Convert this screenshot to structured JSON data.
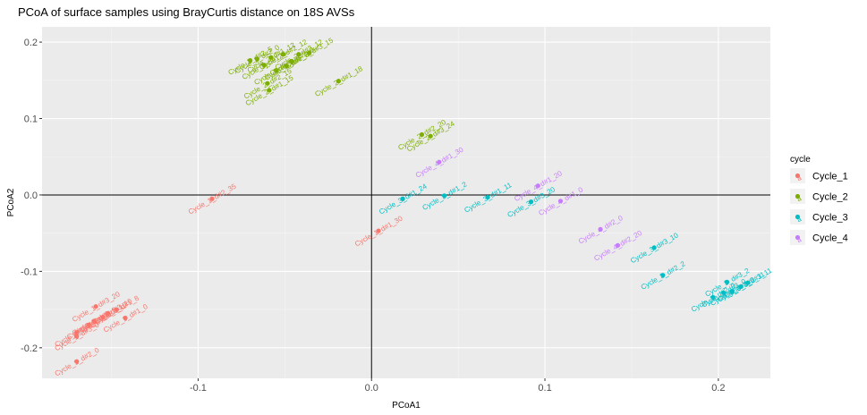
{
  "chart_data": {
    "type": "scatter",
    "title": "PCoA of surface samples using BrayCurtis distance on 18S AVSs",
    "xlabel": "PCoA1",
    "ylabel": "PCoA2",
    "xlim": [
      -0.19,
      0.23
    ],
    "ylim": [
      -0.24,
      0.22
    ],
    "x_ticks": [
      {
        "value": -0.1,
        "label": "-0.1"
      },
      {
        "value": 0.0,
        "label": "0.0"
      },
      {
        "value": 0.1,
        "label": "0.1"
      },
      {
        "value": 0.2,
        "label": "0.2"
      }
    ],
    "y_ticks": [
      {
        "value": 0.2,
        "label": "0.2"
      },
      {
        "value": 0.1,
        "label": "0.1"
      },
      {
        "value": 0.0,
        "label": "0.0"
      },
      {
        "value": -0.1,
        "label": "-0.1"
      },
      {
        "value": -0.2,
        "label": "-0.2"
      }
    ],
    "grid": true,
    "reference_lines": {
      "x": 0,
      "y": 0
    },
    "legend": {
      "title": "cycle",
      "position": "right"
    },
    "series": [
      {
        "name": "Cycle_1",
        "color": "#F8766D",
        "points": [
          {
            "x": -0.092,
            "y": -0.005,
            "label": "Cycle_1_d#2_35"
          },
          {
            "x": 0.004,
            "y": -0.047,
            "label": "Cycle_1_d#1_30"
          },
          {
            "x": -0.159,
            "y": -0.146,
            "label": "Cycle_1_d#3_20"
          },
          {
            "x": -0.147,
            "y": -0.15,
            "label": "Cycle_1_d#1_8"
          },
          {
            "x": -0.142,
            "y": -0.161,
            "label": "Cycle_1_d#1_0"
          },
          {
            "x": -0.152,
            "y": -0.155,
            "label": "Cycle_1_d#3_10"
          },
          {
            "x": -0.155,
            "y": -0.16,
            "label": "Cycle_1_d#2_10"
          },
          {
            "x": -0.16,
            "y": -0.165,
            "label": "Cycle_1_d#3_5"
          },
          {
            "x": -0.163,
            "y": -0.17,
            "label": "Cycle_1_d#1_5"
          },
          {
            "x": -0.17,
            "y": -0.18,
            "label": "Cycle_1_d#2_5"
          },
          {
            "x": -0.17,
            "y": -0.185,
            "label": "Cycle_1_d#3_0"
          },
          {
            "x": -0.17,
            "y": -0.218,
            "label": "Cycle_1_d#2_0"
          }
        ]
      },
      {
        "name": "Cycle_2",
        "color": "#7CAE00",
        "points": [
          {
            "x": -0.07,
            "y": 0.176,
            "label": "Cycle_2_d#2_5"
          },
          {
            "x": -0.066,
            "y": 0.178,
            "label": "Cycle_2_d#2_0"
          },
          {
            "x": -0.062,
            "y": 0.17,
            "label": "Cycle_2_d#1_5"
          },
          {
            "x": -0.058,
            "y": 0.18,
            "label": "Cycle_2_d#1_12"
          },
          {
            "x": -0.055,
            "y": 0.163,
            "label": "Cycle_2_d#3_5"
          },
          {
            "x": -0.051,
            "y": 0.184,
            "label": "Cycle_2_d#2_12"
          },
          {
            "x": -0.049,
            "y": 0.169,
            "label": "Cycle_2_d#1_0"
          },
          {
            "x": -0.046,
            "y": 0.175,
            "label": "Cycle_2_d#3_0"
          },
          {
            "x": -0.042,
            "y": 0.184,
            "label": "Cycle_2_d#3_12"
          },
          {
            "x": -0.036,
            "y": 0.186,
            "label": "Cycle_2_d#3_15"
          },
          {
            "x": -0.06,
            "y": 0.146,
            "label": "Cycle_2_d#2_15"
          },
          {
            "x": -0.059,
            "y": 0.137,
            "label": "Cycle_2_d#1_15"
          },
          {
            "x": -0.019,
            "y": 0.149,
            "label": "Cycle_2_d#1_18"
          },
          {
            "x": 0.029,
            "y": 0.079,
            "label": "Cycle_2_d#2_20"
          },
          {
            "x": 0.034,
            "y": 0.077,
            "label": "Cycle_2_d#3_24"
          }
        ]
      },
      {
        "name": "Cycle_3",
        "color": "#00BFC4",
        "points": [
          {
            "x": 0.018,
            "y": -0.005,
            "label": "Cycle_3_d#1_24"
          },
          {
            "x": 0.042,
            "y": -0.001,
            "label": "Cycle_3_d#1_2"
          },
          {
            "x": 0.067,
            "y": -0.003,
            "label": "Cycle_3_d#1_11"
          },
          {
            "x": 0.092,
            "y": -0.009,
            "label": "Cycle_3_d#3_20"
          },
          {
            "x": 0.163,
            "y": -0.069,
            "label": "Cycle_3_d#3_10"
          },
          {
            "x": 0.168,
            "y": -0.105,
            "label": "Cycle_3_d#2_2"
          },
          {
            "x": 0.197,
            "y": -0.134,
            "label": "Cycle_3_d#2_0"
          },
          {
            "x": 0.203,
            "y": -0.128,
            "label": "Cycle_3_d#3_0"
          },
          {
            "x": 0.205,
            "y": -0.114,
            "label": "Cycle_3_d#3_2"
          },
          {
            "x": 0.208,
            "y": -0.126,
            "label": "Cycle_3_d#1_0"
          },
          {
            "x": 0.213,
            "y": -0.12,
            "label": "Cycle_3_d#2_11"
          },
          {
            "x": 0.217,
            "y": -0.115,
            "label": "Cycle_3_d#3_11"
          }
        ]
      },
      {
        "name": "Cycle_4",
        "color": "#C77CFF",
        "points": [
          {
            "x": 0.039,
            "y": 0.043,
            "label": "Cycle_4_d#1_30"
          },
          {
            "x": 0.096,
            "y": 0.012,
            "label": "Cycle_4_d#1_20"
          },
          {
            "x": 0.109,
            "y": -0.008,
            "label": "Cycle_4_d#1_0"
          },
          {
            "x": 0.132,
            "y": -0.045,
            "label": "Cycle_4_d#2_0"
          },
          {
            "x": 0.142,
            "y": -0.066,
            "label": "Cycle_4_d#2_20"
          }
        ]
      }
    ]
  }
}
